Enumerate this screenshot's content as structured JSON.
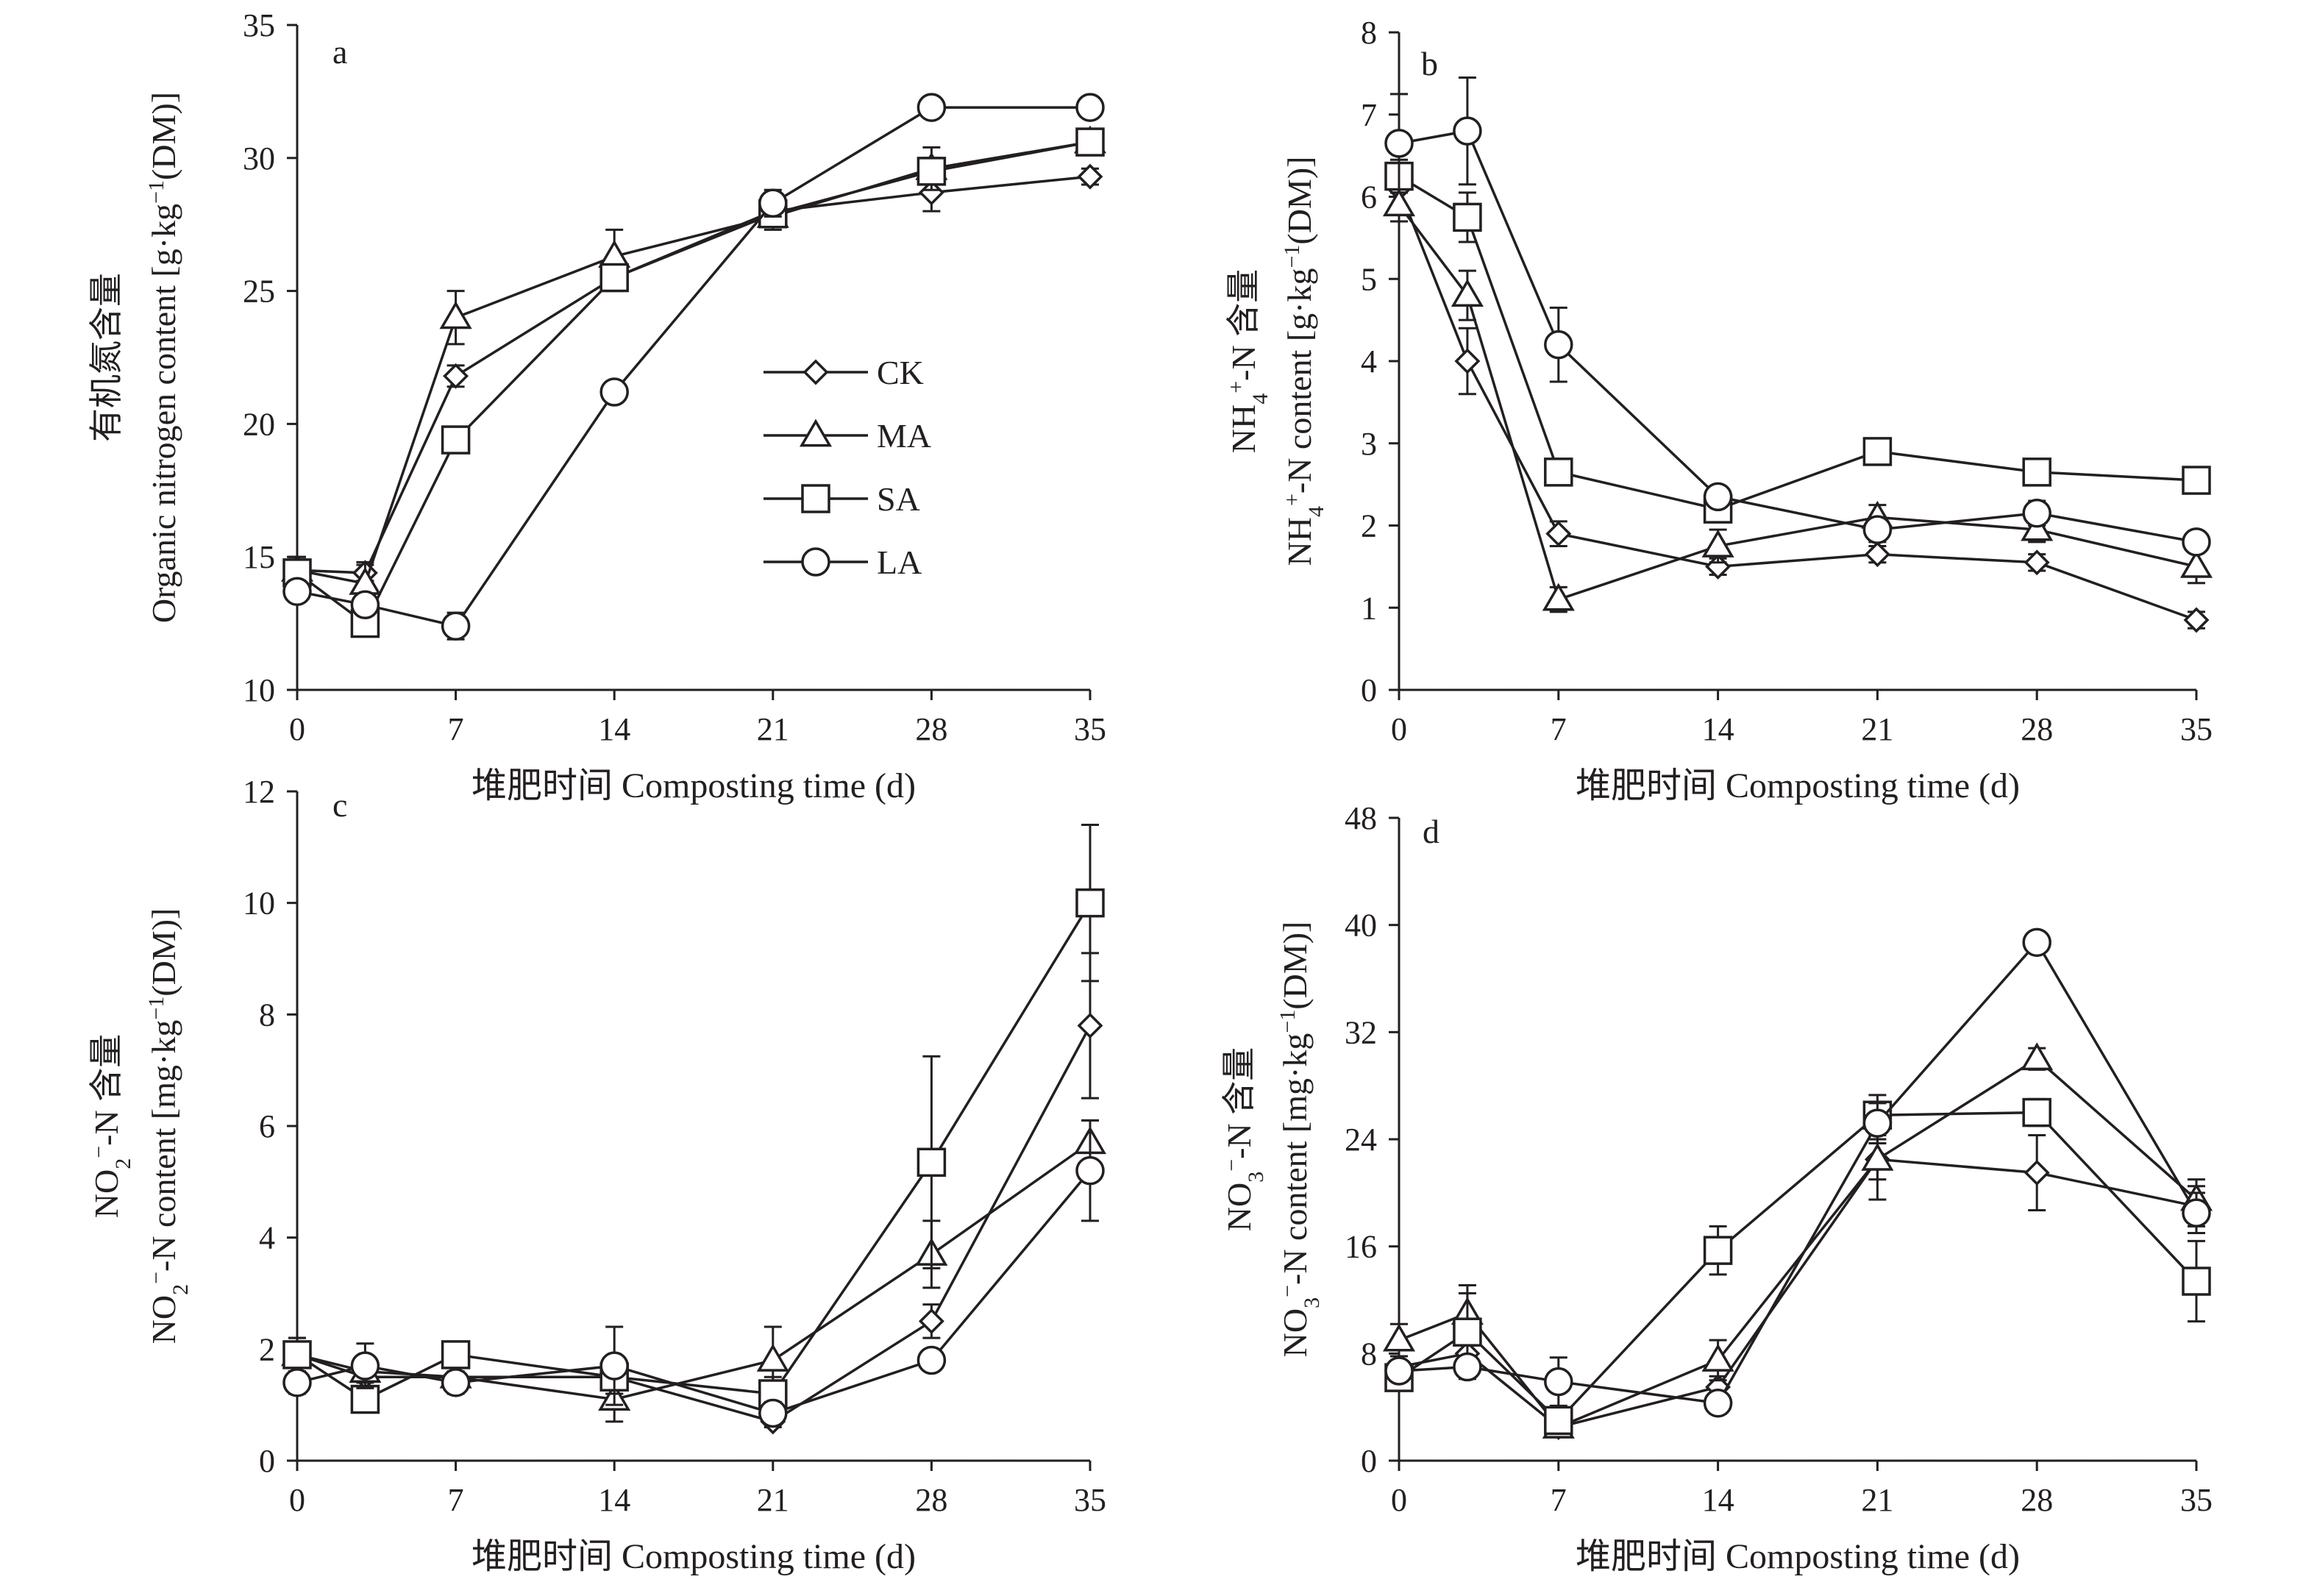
{
  "chart_data": [
    {
      "type": "line",
      "panel": "a",
      "ylabel_cn": "有机氮含量",
      "ylabel_en": "Organic nitrogen content [g·kg⁻¹(DM)]",
      "xlabel": "堆肥时间 Composting time (d)",
      "x": [
        0,
        3,
        7,
        14,
        21,
        28,
        35
      ],
      "xticks": [
        0,
        7,
        14,
        21,
        28,
        35
      ],
      "ylim": [
        10,
        35
      ],
      "yticks": [
        10,
        15,
        20,
        25,
        30,
        35
      ],
      "legend": {
        "position": "center",
        "entries": [
          "CK",
          "MA",
          "SA",
          "LA"
        ]
      },
      "series": [
        {
          "name": "CK",
          "marker": "diamond",
          "values": [
            14.5,
            14.4,
            21.8,
            25.5,
            28.0,
            28.7,
            29.3
          ],
          "err": [
            0.4,
            0.3,
            0.4,
            0.4,
            0.5,
            0.7,
            0.3
          ]
        },
        {
          "name": "MA",
          "marker": "triangle",
          "values": [
            14.5,
            14.0,
            24.0,
            26.3,
            27.8,
            29.6,
            30.6
          ],
          "err": [
            0.5,
            0.8,
            1.0,
            1.0,
            0.5,
            0.8,
            0.4
          ]
        },
        {
          "name": "SA",
          "marker": "square",
          "values": [
            14.4,
            12.5,
            19.4,
            25.5,
            27.9,
            29.5,
            30.6
          ],
          "err": [
            0.6,
            0.4,
            0.4,
            0.5,
            0.5,
            0.5,
            0.4
          ]
        },
        {
          "name": "LA",
          "marker": "circle",
          "values": [
            13.7,
            13.2,
            12.4,
            21.2,
            28.3,
            31.9,
            31.9
          ],
          "err": [
            0.4,
            0.4,
            0.5,
            0.4,
            0.5,
            0.3,
            0.3
          ]
        }
      ]
    },
    {
      "type": "line",
      "panel": "b",
      "ylabel_cn": "NH₄⁺-N 含量",
      "ylabel_en": "NH₄⁺-N content [g·kg⁻¹(DM)]",
      "xlabel": "堆肥时间  Composting time (d)",
      "x": [
        0,
        3,
        7,
        14,
        21,
        28,
        35
      ],
      "xticks": [
        0,
        7,
        14,
        21,
        28,
        35
      ],
      "ylim": [
        0,
        8
      ],
      "yticks": [
        0,
        1,
        2,
        3,
        4,
        5,
        6,
        7,
        8
      ],
      "series": [
        {
          "name": "CK",
          "marker": "diamond",
          "values": [
            6.1,
            4.0,
            1.9,
            1.5,
            1.65,
            1.55,
            0.85
          ],
          "err": [
            0.2,
            0.4,
            0.15,
            0.1,
            0.1,
            0.1,
            0.1
          ]
        },
        {
          "name": "MA",
          "marker": "triangle",
          "values": [
            5.9,
            4.8,
            1.1,
            1.75,
            2.1,
            1.95,
            1.5
          ],
          "err": [
            0.2,
            0.3,
            0.15,
            0.2,
            0.15,
            0.15,
            0.2
          ]
        },
        {
          "name": "SA",
          "marker": "square",
          "values": [
            6.25,
            5.75,
            2.65,
            2.2,
            2.9,
            2.65,
            2.55
          ],
          "err": [
            0.2,
            0.3,
            0.1,
            0.15,
            0.1,
            0.1,
            0.1
          ]
        },
        {
          "name": "LA",
          "marker": "circle",
          "values": [
            6.65,
            6.8,
            4.2,
            2.35,
            1.95,
            2.15,
            1.8
          ],
          "err": [
            0.6,
            0.65,
            0.45,
            0.1,
            0.15,
            0.15,
            0.1
          ]
        }
      ]
    },
    {
      "type": "line",
      "panel": "c",
      "ylabel_cn": "NO₂⁻-N 含量",
      "ylabel_en": "NO₂⁻-N content [mg·kg⁻¹(DM)]",
      "xlabel": "堆肥时间 Composting time (d)",
      "x": [
        0,
        3,
        7,
        14,
        21,
        28,
        35
      ],
      "xticks": [
        0,
        7,
        14,
        21,
        28,
        35
      ],
      "ylim": [
        0,
        12
      ],
      "yticks": [
        0,
        2,
        4,
        6,
        8,
        10,
        12
      ],
      "series": [
        {
          "name": "CK",
          "marker": "diamond",
          "values": [
            1.9,
            1.5,
            1.5,
            1.5,
            0.7,
            2.5,
            7.8
          ],
          "err": [
            0.2,
            0.2,
            0.2,
            0.3,
            0.1,
            0.3,
            1.3
          ]
        },
        {
          "name": "MA",
          "marker": "triangle",
          "values": [
            1.9,
            1.6,
            1.5,
            1.1,
            1.8,
            3.7,
            5.7
          ],
          "err": [
            0.3,
            0.2,
            0.2,
            0.4,
            0.6,
            0.6,
            0.4
          ]
        },
        {
          "name": "SA",
          "marker": "square",
          "values": [
            1.9,
            1.1,
            1.9,
            1.5,
            1.2,
            5.35,
            10.0
          ],
          "err": [
            0.3,
            0.2,
            0.2,
            0.3,
            0.3,
            1.9,
            1.4
          ]
        },
        {
          "name": "LA",
          "marker": "circle",
          "values": [
            1.4,
            1.7,
            1.4,
            1.7,
            0.85,
            1.8,
            5.2
          ],
          "err": [
            0.2,
            0.4,
            0.2,
            0.7,
            0.2,
            0.15,
            0.9
          ]
        }
      ]
    },
    {
      "type": "line",
      "panel": "d",
      "ylabel_cn": "NO₃⁻-N 含量",
      "ylabel_en": "NO₃⁻-N content [mg·kg⁻¹(DM)]",
      "xlabel": "堆肥时间  Composting time (d)",
      "x": [
        0,
        3,
        7,
        14,
        21,
        28,
        35
      ],
      "xticks": [
        0,
        7,
        14,
        21,
        28,
        35
      ],
      "ylim": [
        0,
        48
      ],
      "yticks": [
        0,
        8,
        16,
        24,
        32,
        40,
        48
      ],
      "series": [
        {
          "name": "CK",
          "marker": "diamond",
          "values": [
            7.0,
            8.0,
            2.5,
            5.5,
            22.5,
            21.5,
            19.0
          ],
          "err": [
            0.8,
            1.0,
            0.6,
            0.8,
            3.0,
            2.8,
            1.5
          ]
        },
        {
          "name": "MA",
          "marker": "triangle",
          "values": [
            9.0,
            11.0,
            2.5,
            7.5,
            22.5,
            30.0,
            19.5
          ],
          "err": [
            1.2,
            1.5,
            0.6,
            1.5,
            1.5,
            0.8,
            1.5
          ]
        },
        {
          "name": "SA",
          "marker": "square",
          "values": [
            6.2,
            9.6,
            3.0,
            15.7,
            25.8,
            26.0,
            13.4
          ],
          "err": [
            0.8,
            3.5,
            0.8,
            1.8,
            1.5,
            1.0,
            3.0
          ]
        },
        {
          "name": "LA",
          "marker": "circle",
          "values": [
            6.7,
            7.0,
            5.9,
            4.3,
            25.2,
            38.7,
            18.5
          ],
          "err": [
            0.5,
            0.6,
            1.8,
            0.8,
            1.5,
            0.5,
            1.5
          ]
        }
      ]
    }
  ]
}
